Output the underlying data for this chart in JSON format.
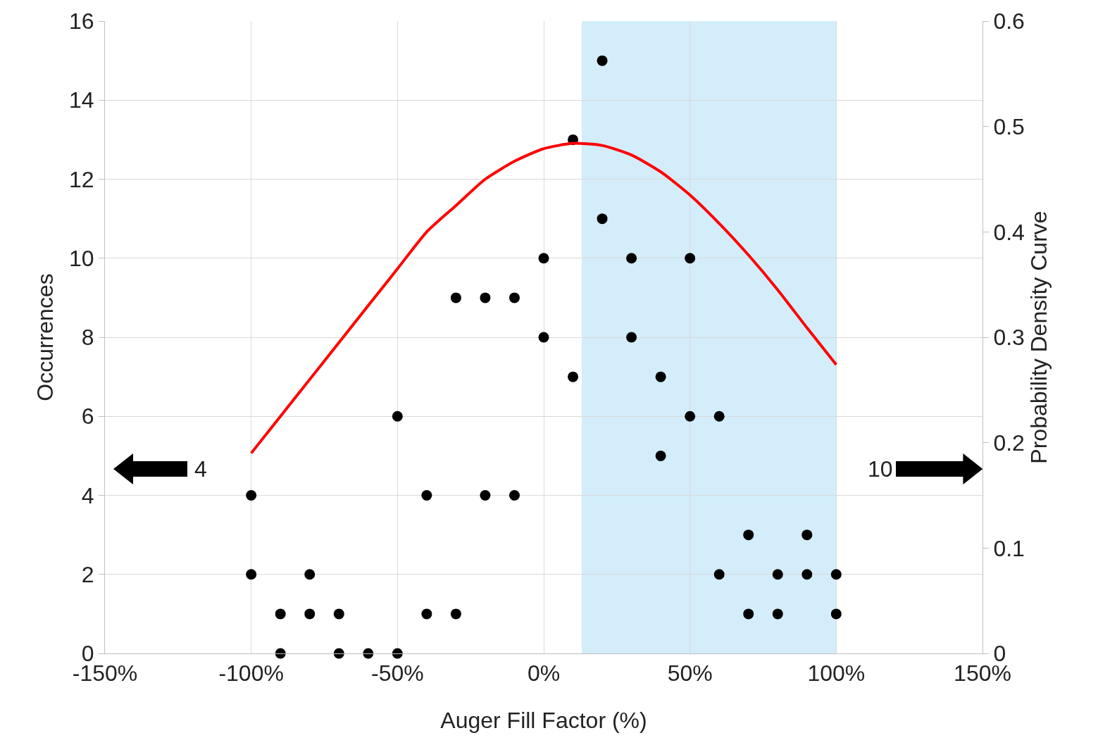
{
  "chart_data": {
    "type": "scatter",
    "xlabel": "Auger Fill Factor (%)",
    "ylabel": "Occurrences",
    "y2label": "Probability Density Curve",
    "xlim": [
      -150,
      150
    ],
    "xticks": [
      {
        "value": -150,
        "label": "-150%"
      },
      {
        "value": -100,
        "label": "-100%"
      },
      {
        "value": -50,
        "label": "-50%"
      },
      {
        "value": 0,
        "label": "0%"
      },
      {
        "value": 50,
        "label": "50%"
      },
      {
        "value": 100,
        "label": "100%"
      },
      {
        "value": 150,
        "label": "150%"
      }
    ],
    "ylim": [
      0,
      16
    ],
    "yticks": [
      0,
      2,
      4,
      6,
      8,
      10,
      12,
      14,
      16
    ],
    "y2lim": [
      0,
      0.6
    ],
    "y2ticks": [
      0,
      0.1,
      0.2,
      0.3,
      0.4,
      0.5,
      0.6
    ],
    "grid": true,
    "marker": "circle",
    "series": [
      {
        "color": "#000000",
        "x": [
          -100,
          -100,
          -90,
          -90,
          -80,
          -80,
          -70,
          -70,
          -60,
          -50,
          -50,
          -40,
          -40,
          -30,
          -30,
          -20,
          -20,
          -10,
          -10,
          0,
          0,
          10,
          10,
          20,
          20,
          30,
          30,
          40,
          40,
          50,
          50,
          60,
          60,
          70,
          70,
          80,
          80,
          90,
          90,
          100,
          100
        ],
        "values": [
          4,
          2,
          1,
          0,
          2,
          1,
          1,
          0,
          0,
          6,
          0,
          4,
          1,
          9,
          1,
          9,
          4,
          9,
          4,
          10,
          8,
          13,
          7,
          15,
          11,
          10,
          8,
          7,
          5,
          10,
          6,
          6,
          2,
          3,
          1,
          2,
          1,
          3,
          2,
          2,
          1
        ]
      },
      {
        "type": "line",
        "axis": "y2",
        "color": "#ff0000",
        "marker": "none",
        "line_style": "solid",
        "x": [
          -100,
          -90,
          -80,
          -70,
          -60,
          -50,
          -40,
          -30,
          -20,
          -10,
          0,
          10,
          20,
          30,
          40,
          50,
          60,
          70,
          80,
          90,
          100
        ],
        "values": [
          0.19,
          0.225,
          0.26,
          0.295,
          0.33,
          0.365,
          0.4,
          0.425,
          0.45,
          0.467,
          0.479,
          0.484,
          0.482,
          0.473,
          0.457,
          0.435,
          0.408,
          0.378,
          0.345,
          0.309,
          0.274
        ]
      }
    ],
    "bands": [
      {
        "axis": "x",
        "from": 13,
        "to": 100,
        "color": "#d3edfa"
      }
    ],
    "annotations": [
      "4",
      "10"
    ]
  }
}
